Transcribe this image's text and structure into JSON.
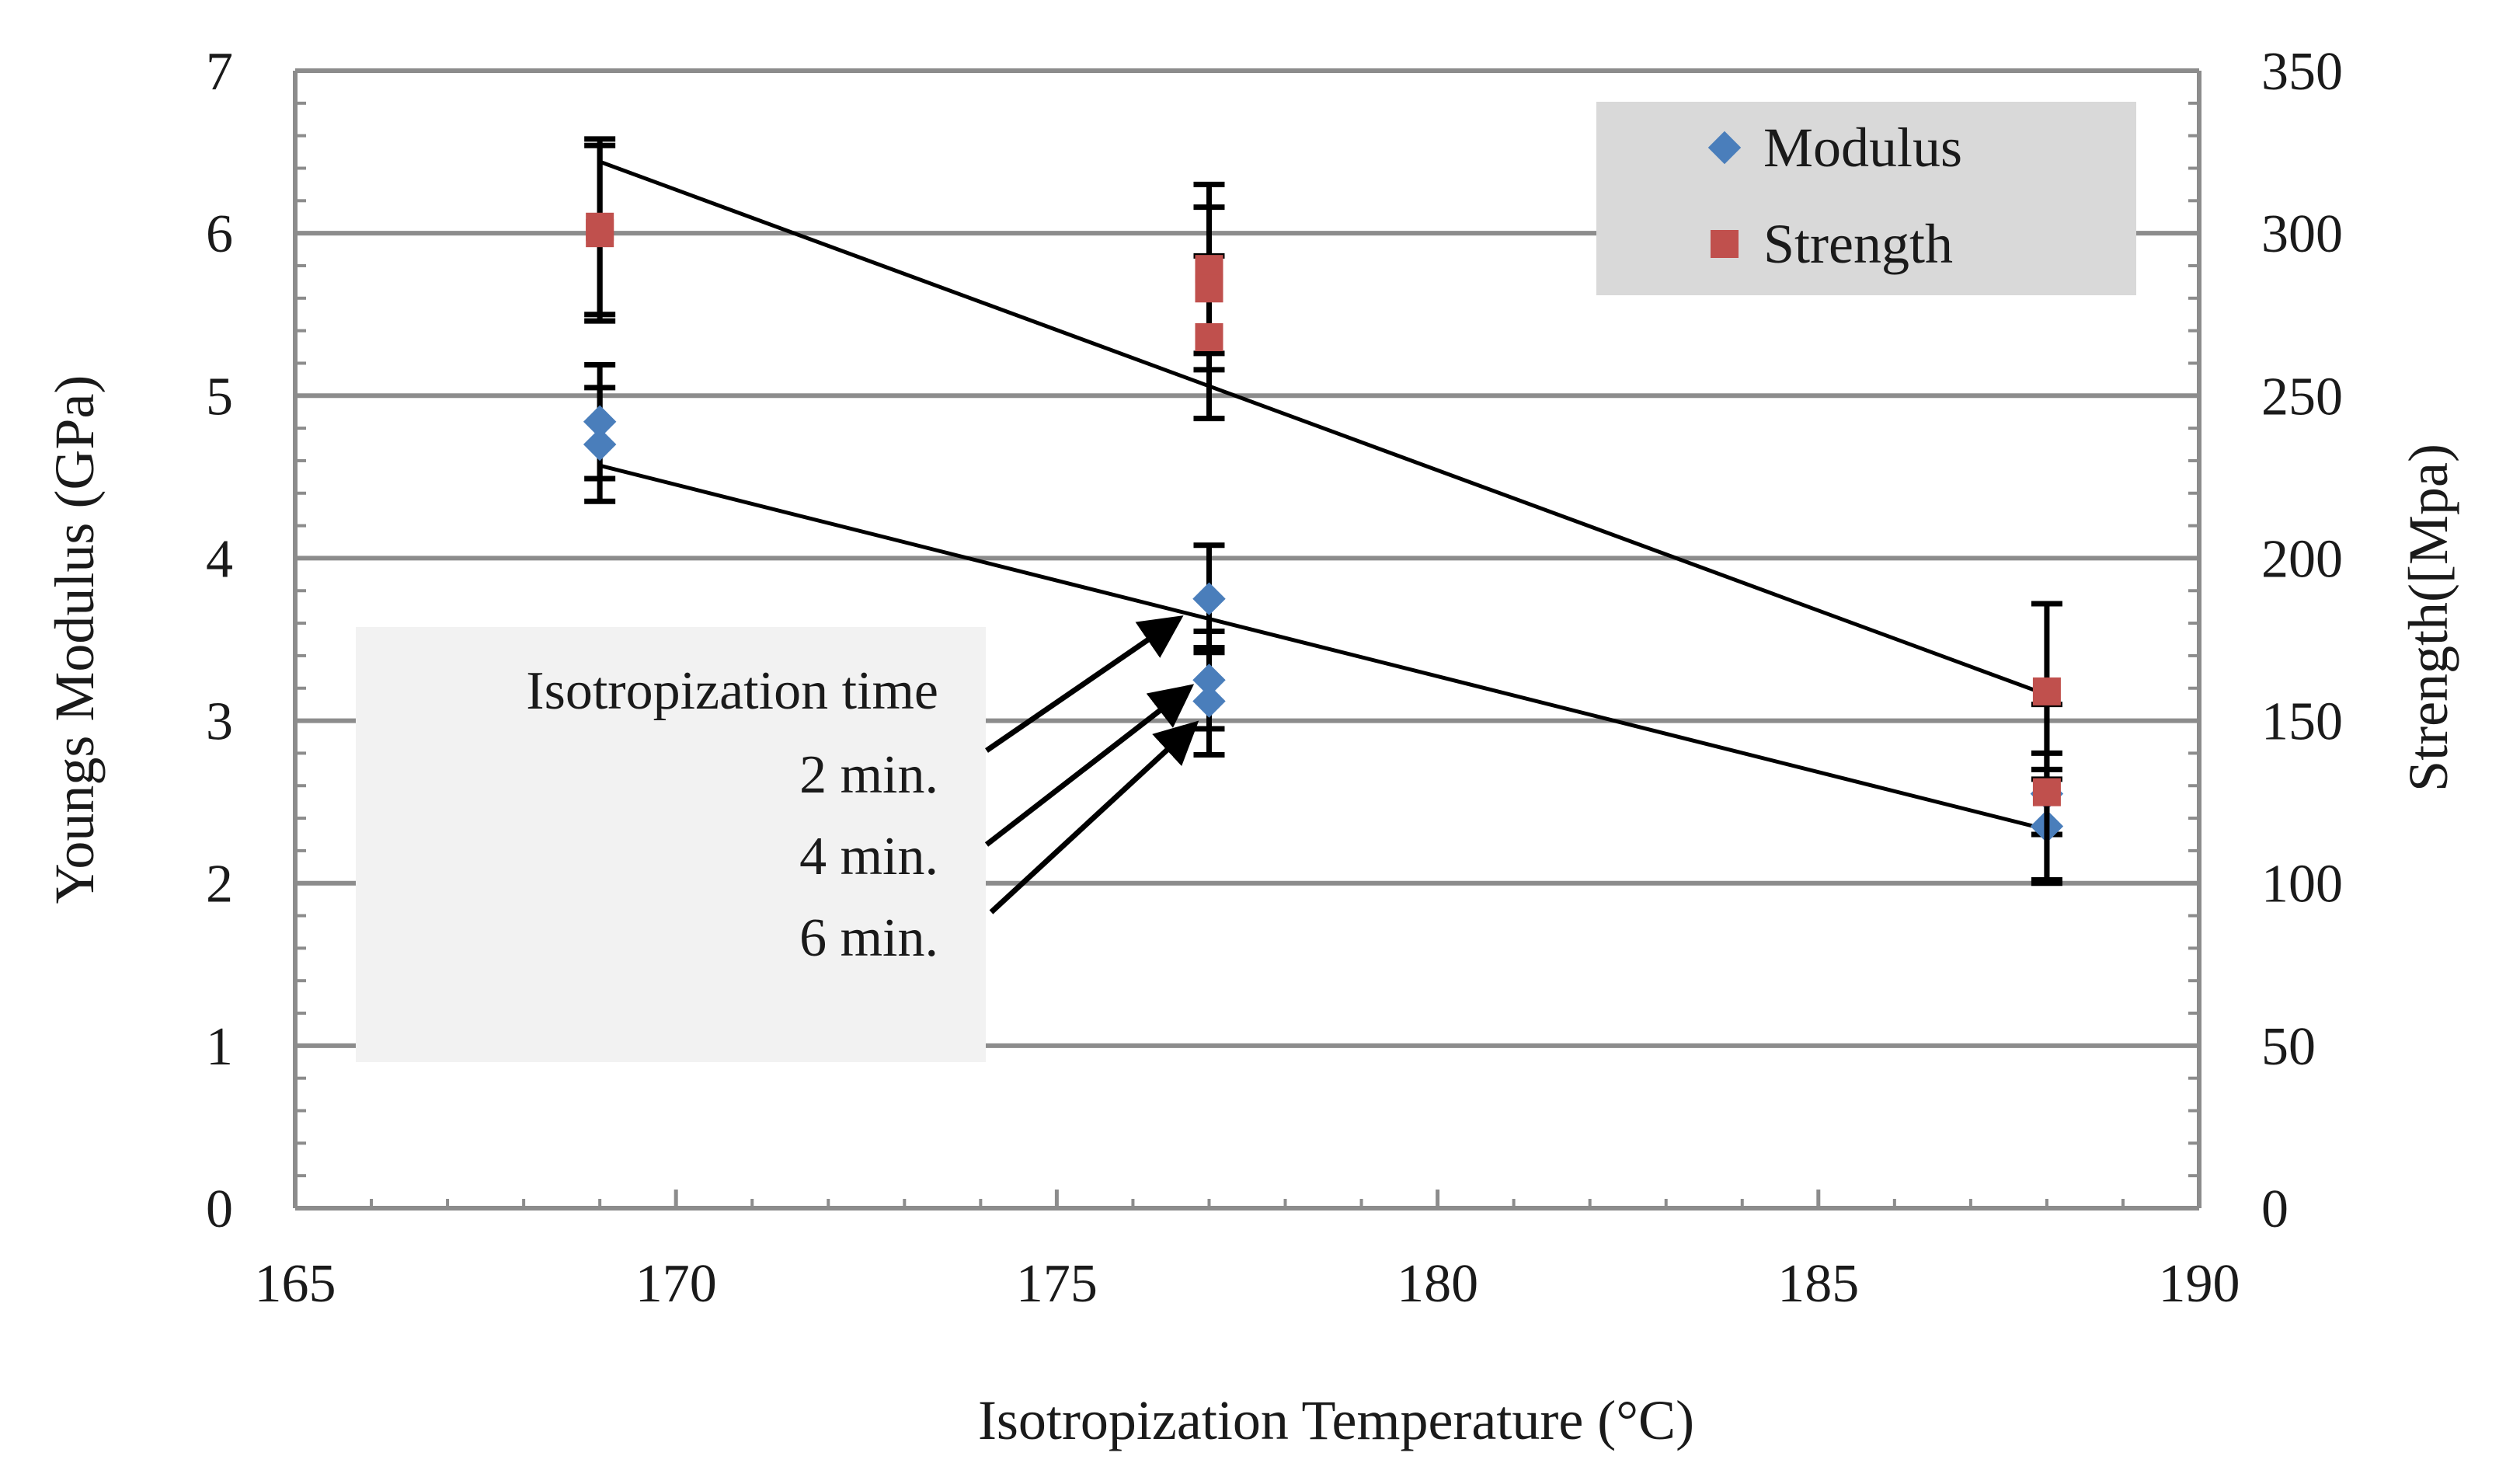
{
  "chart_data": {
    "type": "scatter",
    "title": "",
    "xlabel": "Isotropization Temperature (°C)",
    "ylabel": "Youngs Modulus (GPa)",
    "y2label": "Strength([Mpa)",
    "xlim": [
      165,
      190
    ],
    "ylim": [
      0,
      7
    ],
    "y2lim": [
      0,
      350
    ],
    "x_ticks": [
      "165",
      "170",
      "175",
      "180",
      "185",
      "190"
    ],
    "y_ticks": [
      "0",
      "1",
      "2",
      "3",
      "4",
      "5",
      "6",
      "7"
    ],
    "y2_ticks": [
      "0",
      "50",
      "100",
      "150",
      "200",
      "250",
      "300",
      "350"
    ],
    "grid": "horizontal",
    "legend_position": "top-right",
    "colors": {
      "Modulus": "#4a7ebb",
      "Strength": "#c0504d"
    },
    "series": [
      {
        "name": "Modulus",
        "axis": "left",
        "marker": "diamond",
        "points": [
          {
            "x": 169,
            "y": 4.84,
            "err": 0.35
          },
          {
            "x": 169,
            "y": 4.7,
            "err": 0.35
          },
          {
            "x": 177,
            "y": 3.75,
            "err": 0.33
          },
          {
            "x": 177,
            "y": 3.25,
            "err": 0.3
          },
          {
            "x": 177,
            "y": 3.12,
            "err": 0.33
          },
          {
            "x": 188,
            "y": 2.55,
            "err": 0.25
          },
          {
            "x": 188,
            "y": 2.35,
            "err": 0.35
          }
        ],
        "trend": [
          {
            "x": 169,
            "y": 4.57
          },
          {
            "x": 188,
            "y": 2.33
          }
        ]
      },
      {
        "name": "Strength",
        "axis": "right",
        "marker": "square",
        "points": [
          {
            "x": 169,
            "y": 302,
            "err": 27
          },
          {
            "x": 169,
            "y": 300,
            "err": 27
          },
          {
            "x": 177,
            "y": 289,
            "err": 26
          },
          {
            "x": 177,
            "y": 283,
            "err": 25
          },
          {
            "x": 177,
            "y": 268,
            "err": 25
          },
          {
            "x": 188,
            "y": 159,
            "err": 27
          },
          {
            "x": 188,
            "y": 128,
            "err": 27
          }
        ],
        "trend": [
          {
            "x": 169,
            "y": 322
          },
          {
            "x": 188,
            "y": 158
          }
        ]
      }
    ],
    "annotation": {
      "title": "Isotropization time",
      "labels": [
        "2 min.",
        "4 min.",
        "6 min."
      ]
    }
  }
}
